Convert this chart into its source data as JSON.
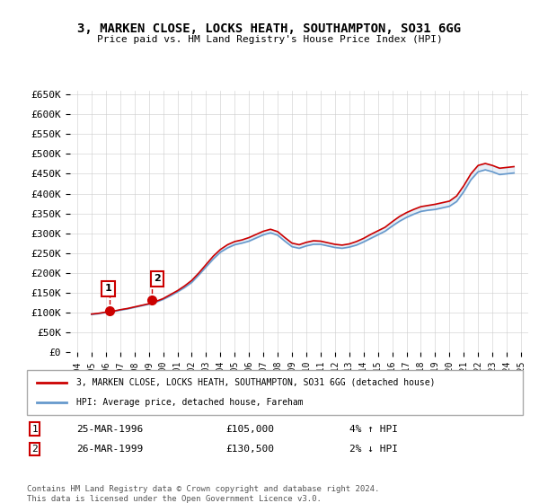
{
  "title": "3, MARKEN CLOSE, LOCKS HEATH, SOUTHAMPTON, SO31 6GG",
  "subtitle": "Price paid vs. HM Land Registry's House Price Index (HPI)",
  "ylabel_ticks": [
    "£0",
    "£50K",
    "£100K",
    "£150K",
    "£200K",
    "£250K",
    "£300K",
    "£350K",
    "£400K",
    "£450K",
    "£500K",
    "£550K",
    "£600K",
    "£650K"
  ],
  "ytick_values": [
    0,
    50000,
    100000,
    150000,
    200000,
    250000,
    300000,
    350000,
    400000,
    450000,
    500000,
    550000,
    600000,
    650000
  ],
  "xlim": [
    1993.5,
    2025.5
  ],
  "ylim": [
    0,
    660000
  ],
  "legend_line1": "3, MARKEN CLOSE, LOCKS HEATH, SOUTHAMPTON, SO31 6GG (detached house)",
  "legend_line2": "HPI: Average price, detached house, Fareham",
  "annotation1_label": "1",
  "annotation1_date": "25-MAR-1996",
  "annotation1_price": "£105,000",
  "annotation1_hpi": "4% ↑ HPI",
  "annotation2_label": "2",
  "annotation2_date": "26-MAR-1999",
  "annotation2_price": "£130,500",
  "annotation2_hpi": "2% ↓ HPI",
  "footer": "Contains HM Land Registry data © Crown copyright and database right 2024.\nThis data is licensed under the Open Government Licence v3.0.",
  "sale_color": "#cc0000",
  "hpi_color": "#6699cc",
  "sale_marker_color": "#cc0000",
  "annotation_box_color": "#cc0000",
  "sale1_x": 1996.23,
  "sale1_y": 105000,
  "sale2_x": 1999.23,
  "sale2_y": 130500,
  "hpi_years": [
    1995,
    1995.5,
    1996,
    1996.5,
    1997,
    1997.5,
    1998,
    1998.5,
    1999,
    1999.5,
    2000,
    2000.5,
    2001,
    2001.5,
    2002,
    2002.5,
    2003,
    2003.5,
    2004,
    2004.5,
    2005,
    2005.5,
    2006,
    2006.5,
    2007,
    2007.5,
    2008,
    2008.5,
    2009,
    2009.5,
    2010,
    2010.5,
    2011,
    2011.5,
    2012,
    2012.5,
    2013,
    2013.5,
    2014,
    2014.5,
    2015,
    2015.5,
    2016,
    2016.5,
    2017,
    2017.5,
    2018,
    2018.5,
    2019,
    2019.5,
    2020,
    2020.5,
    2021,
    2021.5,
    2022,
    2022.5,
    2023,
    2023.5,
    2024,
    2024.5
  ],
  "hpi_values": [
    95000,
    97000,
    100000,
    102000,
    106000,
    109000,
    113000,
    117000,
    121000,
    126000,
    133000,
    142000,
    152000,
    163000,
    176000,
    195000,
    215000,
    235000,
    252000,
    263000,
    271000,
    275000,
    280000,
    288000,
    296000,
    301000,
    295000,
    280000,
    266000,
    262000,
    268000,
    272000,
    272000,
    268000,
    264000,
    262000,
    265000,
    270000,
    278000,
    287000,
    296000,
    305000,
    318000,
    330000,
    340000,
    348000,
    355000,
    358000,
    360000,
    364000,
    368000,
    380000,
    405000,
    435000,
    455000,
    460000,
    455000,
    448000,
    450000,
    452000
  ],
  "price_years": [
    1995,
    1995.5,
    1996,
    1996.5,
    1997,
    1997.5,
    1998,
    1998.5,
    1999,
    1999.5,
    2000,
    2000.5,
    2001,
    2001.5,
    2002,
    2002.5,
    2003,
    2003.5,
    2004,
    2004.5,
    2005,
    2005.5,
    2006,
    2006.5,
    2007,
    2007.5,
    2008,
    2008.5,
    2009,
    2009.5,
    2010,
    2010.5,
    2011,
    2011.5,
    2012,
    2012.5,
    2013,
    2013.5,
    2014,
    2014.5,
    2015,
    2015.5,
    2016,
    2016.5,
    2017,
    2017.5,
    2018,
    2018.5,
    2019,
    2019.5,
    2020,
    2020.5,
    2021,
    2021.5,
    2022,
    2022.5,
    2023,
    2023.5,
    2024,
    2024.5
  ],
  "price_values": [
    96000,
    98000,
    101000,
    103000,
    107000,
    110000,
    114000,
    118000,
    122000,
    128000,
    135000,
    145000,
    155000,
    167000,
    181000,
    200000,
    221000,
    242000,
    259000,
    271000,
    279000,
    283000,
    289000,
    297000,
    305000,
    310000,
    304000,
    289000,
    275000,
    271000,
    277000,
    281000,
    280000,
    276000,
    272000,
    270000,
    273000,
    279000,
    287000,
    297000,
    306000,
    315000,
    329000,
    342000,
    352000,
    360000,
    367000,
    370000,
    373000,
    377000,
    381000,
    394000,
    420000,
    450000,
    471000,
    476000,
    471000,
    464000,
    466000,
    468000
  ]
}
